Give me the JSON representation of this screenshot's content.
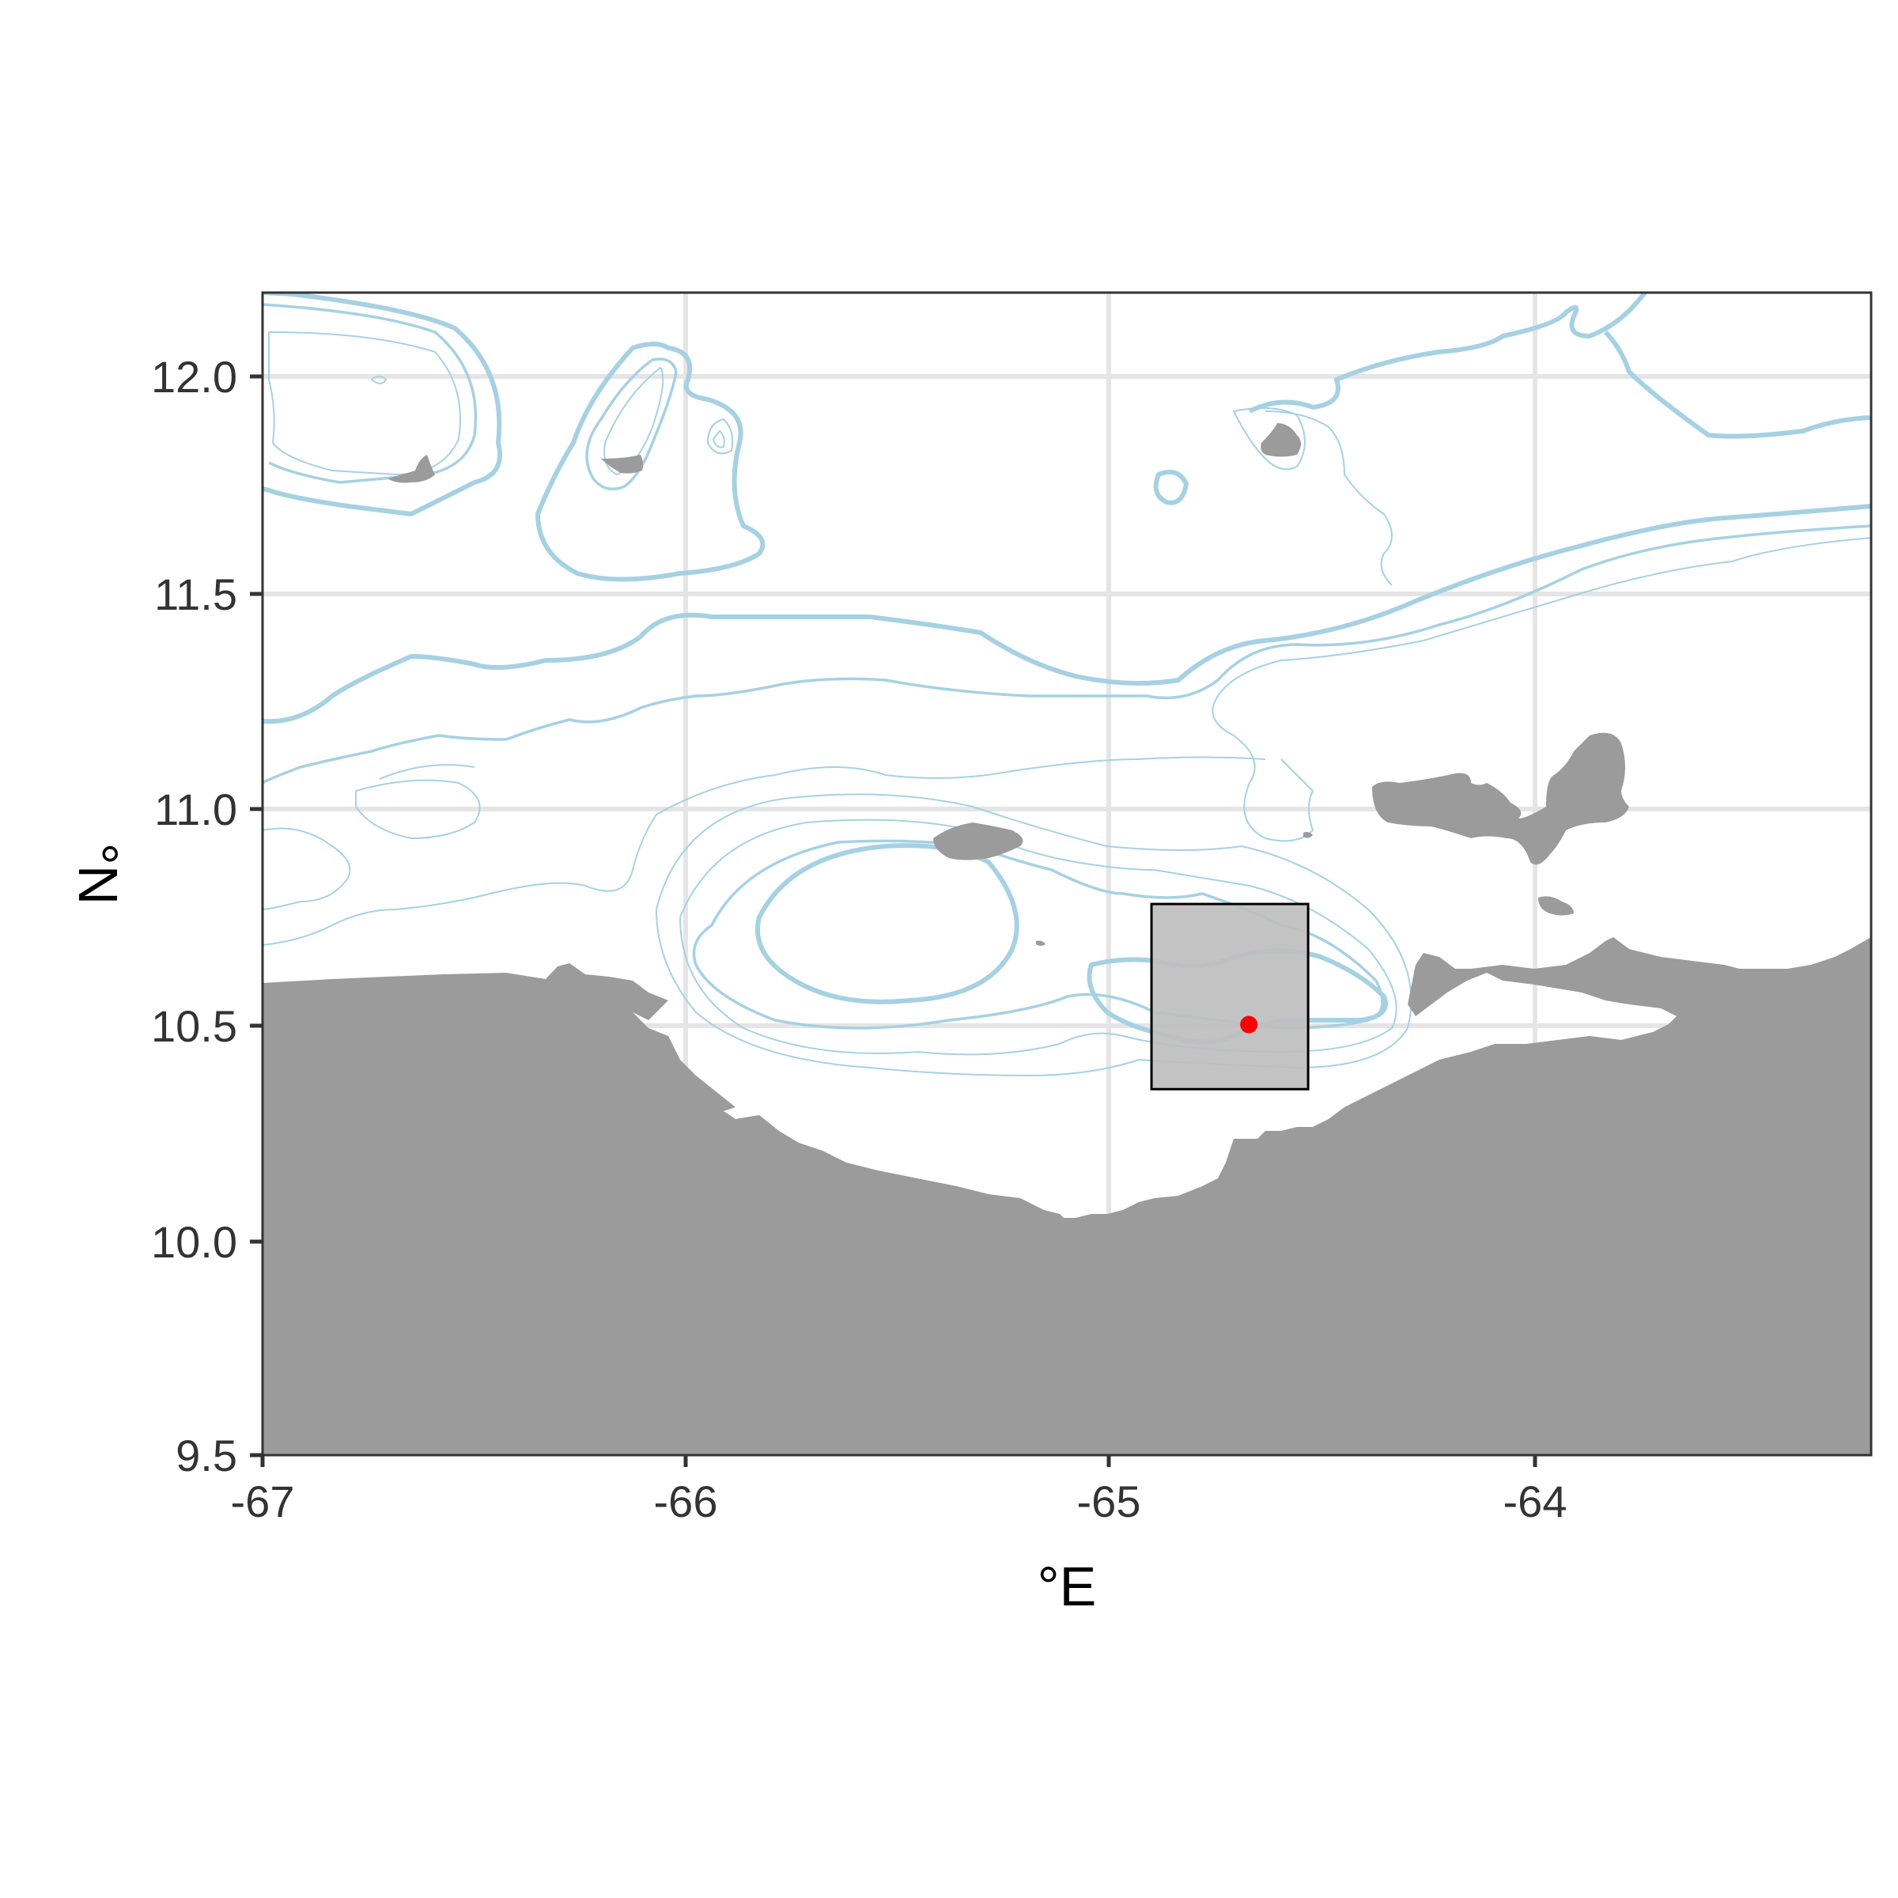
{
  "map": {
    "x_axis_title": "°E",
    "y_axis_title": "°N",
    "x_ticks": [
      "-67",
      "-66",
      "-65",
      "-64"
    ],
    "y_ticks": [
      "12.0",
      "11.5",
      "11.0",
      "10.5",
      "10.0",
      "9.5"
    ],
    "x_range": [
      -67,
      -63.2
    ],
    "y_range": [
      9.5,
      12.2
    ],
    "colors": {
      "land": "#9b9b9b",
      "contour": "#a6d1e3",
      "study_box_fill": "#bebebe",
      "site_point": "#ff0000",
      "gridline": "#e5e5e5"
    },
    "study_area": {
      "lon_min": -64.9,
      "lon_max": -64.53,
      "lat_min": 10.35,
      "lat_max": 10.78
    },
    "site": {
      "lon": -64.67,
      "lat": 10.5
    }
  }
}
